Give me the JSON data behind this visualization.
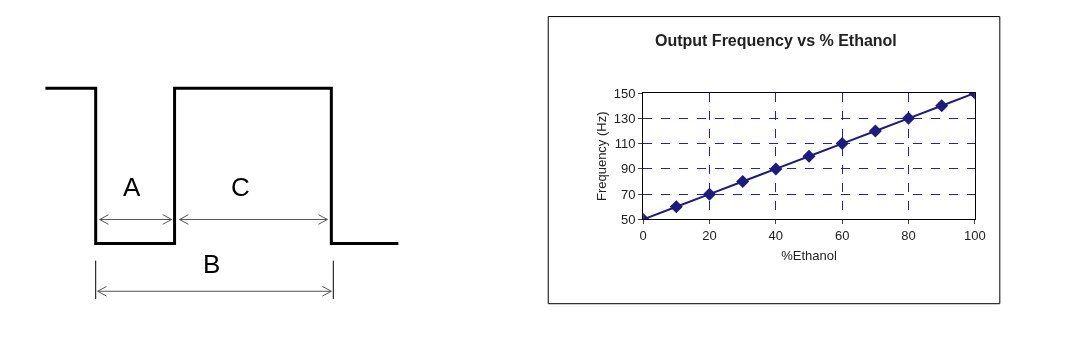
{
  "chart_data": [
    {
      "type": "other",
      "annotations": [
        "A",
        "C",
        "B"
      ]
    },
    {
      "type": "line",
      "title": "Output Frequency vs % Ethanol",
      "xlabel": "%Ethanol",
      "ylabel": "Frequency (Hz)",
      "x": [
        0,
        10,
        20,
        30,
        40,
        50,
        60,
        70,
        80,
        90,
        100
      ],
      "series": [
        {
          "color": "#1c1c7c",
          "values": [
            50,
            60,
            70,
            80,
            90,
            100,
            110,
            120,
            130,
            140,
            150
          ]
        }
      ],
      "xlim": [
        0,
        100
      ],
      "xticks": [
        0,
        20,
        40,
        60,
        80,
        100
      ],
      "ylim": [
        50,
        150
      ],
      "yticks": [
        50,
        70,
        90,
        110,
        130,
        150
      ],
      "grid": true,
      "marker": "diamond",
      "line_style": "solid"
    }
  ]
}
